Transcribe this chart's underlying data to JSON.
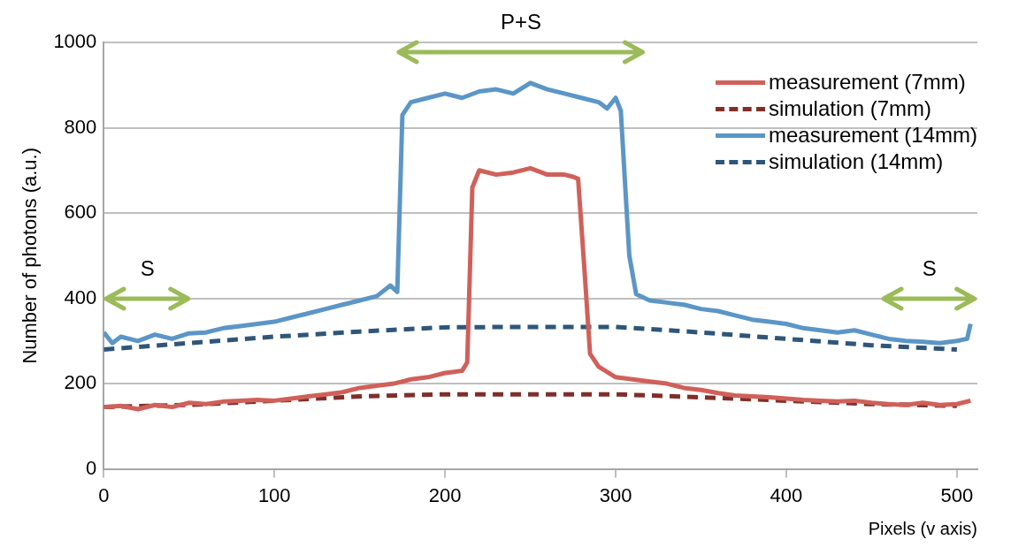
{
  "chart_data": {
    "type": "line",
    "xlabel": "Pixels (v axis)",
    "ylabel": "Number of photons (a.u.)",
    "xlim": [
      0,
      512
    ],
    "xticks": [
      0,
      100,
      200,
      300,
      400,
      500
    ],
    "ylim": [
      0,
      1000
    ],
    "yticks": [
      0,
      200,
      400,
      600,
      800,
      1000
    ],
    "grid": "y",
    "legend": "top right",
    "marker": "none",
    "series": [
      {
        "name": "measurement (7mm)",
        "color": "#d0605a",
        "line_style": "solid",
        "x": [
          0,
          10,
          20,
          30,
          40,
          50,
          60,
          70,
          80,
          90,
          100,
          110,
          120,
          130,
          140,
          150,
          160,
          170,
          180,
          190,
          200,
          210,
          213,
          216,
          220,
          230,
          240,
          250,
          260,
          270,
          275,
          278,
          282,
          285,
          290,
          300,
          310,
          320,
          330,
          340,
          350,
          360,
          370,
          380,
          390,
          400,
          410,
          420,
          430,
          440,
          450,
          460,
          470,
          480,
          490,
          500,
          508
        ],
        "values": [
          145,
          148,
          140,
          150,
          145,
          155,
          152,
          158,
          160,
          162,
          160,
          165,
          170,
          175,
          180,
          190,
          195,
          200,
          210,
          215,
          225,
          230,
          250,
          660,
          700,
          690,
          695,
          705,
          690,
          690,
          685,
          680,
          450,
          270,
          240,
          215,
          210,
          205,
          200,
          190,
          185,
          178,
          172,
          170,
          168,
          165,
          162,
          160,
          158,
          160,
          155,
          152,
          150,
          155,
          150,
          152,
          160
        ]
      },
      {
        "name": "simulation (7mm)",
        "color": "#7f2f2a",
        "line_style": "dashed",
        "x": [
          0,
          50,
          100,
          150,
          200,
          250,
          300,
          350,
          400,
          450,
          500
        ],
        "values": [
          145,
          150,
          160,
          170,
          175,
          175,
          175,
          168,
          160,
          152,
          148
        ]
      },
      {
        "name": "measurement (14mm)",
        "color": "#5b96c6",
        "line_style": "solid",
        "x": [
          0,
          5,
          10,
          20,
          30,
          40,
          50,
          60,
          70,
          80,
          90,
          100,
          110,
          120,
          130,
          140,
          150,
          160,
          168,
          172,
          175,
          180,
          190,
          200,
          210,
          220,
          230,
          240,
          250,
          260,
          270,
          280,
          290,
          295,
          300,
          303,
          308,
          312,
          320,
          330,
          340,
          350,
          360,
          370,
          380,
          390,
          400,
          410,
          420,
          430,
          440,
          450,
          460,
          470,
          480,
          490,
          500,
          506,
          508
        ],
        "values": [
          320,
          295,
          310,
          300,
          315,
          305,
          318,
          320,
          330,
          335,
          340,
          345,
          355,
          365,
          375,
          385,
          395,
          405,
          430,
          415,
          830,
          860,
          870,
          880,
          870,
          885,
          890,
          880,
          905,
          890,
          880,
          870,
          860,
          845,
          870,
          840,
          500,
          410,
          395,
          390,
          385,
          375,
          370,
          360,
          350,
          345,
          340,
          330,
          325,
          320,
          325,
          315,
          305,
          300,
          298,
          295,
          300,
          305,
          340
        ]
      },
      {
        "name": "simulation (14mm)",
        "color": "#2f5679",
        "line_style": "dashed",
        "x": [
          0,
          50,
          100,
          150,
          200,
          250,
          300,
          350,
          400,
          450,
          500
        ],
        "values": [
          280,
          295,
          310,
          322,
          332,
          333,
          333,
          320,
          305,
          290,
          280
        ]
      }
    ],
    "annotations": [
      "S",
      "P+S",
      "S"
    ]
  }
}
